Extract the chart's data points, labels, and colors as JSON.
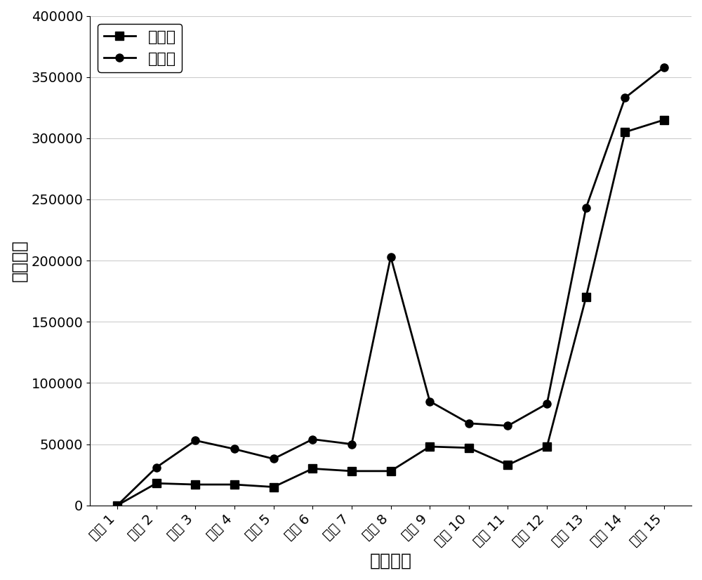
{
  "x_labels": [
    "服务 1",
    "服务 2",
    "服务 3",
    "服务 4",
    "服务 5",
    "服务 6",
    "服务 7",
    "服务 8",
    "服务 9",
    "服务 10",
    "服务 11",
    "服务 12",
    "服务 13",
    "服务 14",
    "服务 15"
  ],
  "after_decoupling": [
    0,
    18000,
    17000,
    17000,
    15000,
    30000,
    28000,
    28000,
    48000,
    47000,
    33000,
    48000,
    170000,
    305000,
    315000
  ],
  "before_decoupling": [
    0,
    31000,
    53000,
    46000,
    38000,
    54000,
    50000,
    203000,
    85000,
    67000,
    65000,
    83000,
    243000,
    333000,
    358000
  ],
  "xlabel": "服务编号",
  "ylabel": "通信开销",
  "legend_after": "解耦后",
  "legend_before": "解耦前",
  "ylim": [
    0,
    400000
  ],
  "yticks": [
    0,
    50000,
    100000,
    150000,
    200000,
    250000,
    300000,
    350000,
    400000
  ],
  "line_color": "#000000",
  "marker_after": "s",
  "marker_before": "o",
  "markersize": 8,
  "linewidth": 2,
  "title_fontsize": 18,
  "label_fontsize": 18,
  "tick_fontsize": 14,
  "legend_fontsize": 16,
  "bg_color": "#ffffff",
  "grid_color": "#cccccc"
}
